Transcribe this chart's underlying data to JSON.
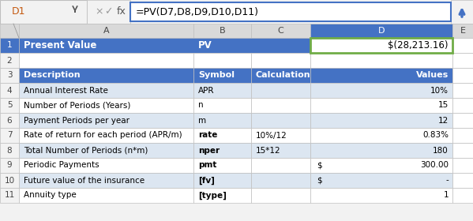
{
  "formula_bar_cell": "D1",
  "formula_bar_text": "=PV(D7,D8,D9,D10,D11)",
  "header_row": [
    "Present Value",
    "PV",
    "",
    "$(28,213.16)"
  ],
  "subheader_row": [
    "Description",
    "Symbol",
    "Calculation",
    "Values"
  ],
  "rows": [
    [
      "Annual Interest Rate",
      "APR",
      "",
      "10%"
    ],
    [
      "Number of Periods (Years)",
      "n",
      "",
      "15"
    ],
    [
      "Payment Periods per year",
      "m",
      "",
      "12"
    ],
    [
      "Rate of return for each period (APR/m)",
      "rate",
      "10%/12",
      "0.83%"
    ],
    [
      "Total Number of Periods (n*m)",
      "nper",
      "15*12",
      "180"
    ],
    [
      "Periodic Payments",
      "pmt",
      "",
      "$ 300.00"
    ],
    [
      "Future value of the insurance",
      "[fv]",
      "",
      "$   -"
    ],
    [
      "Annuity type",
      "[type]",
      "",
      "1"
    ]
  ],
  "bold_symbols": [
    "rate",
    "nper",
    "pmt",
    "[fv]",
    "[type]"
  ],
  "blue_header_color": "#4472C4",
  "blue_header_text": "#FFFFFF",
  "light_blue_color": "#DCE6F1",
  "white_color": "#FFFFFF",
  "grid_color": "#BFBFBF",
  "formula_bg": "#FFFFFF",
  "formula_border": "#4472C4",
  "selected_cell_border": "#70AD47",
  "header_bg": "#D9D9D9",
  "row_num_bg": "#F2F2F2",
  "top_bar_bg": "#F2F2F2",
  "arrow_color": "#4472C4"
}
